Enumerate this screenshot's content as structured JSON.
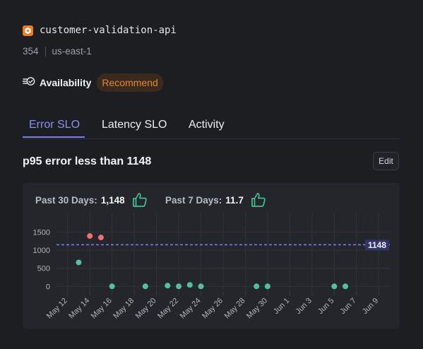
{
  "service": {
    "name": "customer-validation-api",
    "id": "354",
    "region": "us-east-1",
    "icon": "service-hexagon-icon",
    "icon_color": "#f07b1c"
  },
  "availability": {
    "label": "Availability",
    "badge": "Recommend",
    "icon": "availability-check-icon"
  },
  "tabs": [
    {
      "label": "Error SLO",
      "active": true
    },
    {
      "label": "Latency SLO",
      "active": false
    },
    {
      "label": "Activity",
      "active": false
    }
  ],
  "slo": {
    "title": "p95 error less than 1148",
    "edit_label": "Edit"
  },
  "stats": [
    {
      "label": "Past 30 Days:",
      "value": "1,148",
      "icon": "thumbs-up-icon"
    },
    {
      "label": "Past 7 Days:",
      "value": "11.7",
      "icon": "thumbs-up-icon"
    }
  ],
  "chart_data": {
    "type": "scatter",
    "x_tick_labels": [
      "May 12",
      "May 14",
      "May 16",
      "May 18",
      "May 20",
      "May 22",
      "May 24",
      "May 26",
      "May 28",
      "May 30",
      "Jun 1",
      "Jun 3",
      "Jun 5",
      "Jun 7",
      "Jun 9"
    ],
    "y_ticks": [
      0,
      500,
      1000,
      1500
    ],
    "ylim": [
      -150,
      1800
    ],
    "xlim": [
      "May 11",
      "Jun 10"
    ],
    "threshold": {
      "value": 1148,
      "label": "1148",
      "color": "#7b78f0"
    },
    "ok_color": "#4fc1a0",
    "breach_color": "#f0716a",
    "points": [
      {
        "x": "May 13",
        "y": 660
      },
      {
        "x": "May 14",
        "y": 1390
      },
      {
        "x": "May 15",
        "y": 1350
      },
      {
        "x": "May 16",
        "y": 0
      },
      {
        "x": "May 19",
        "y": 0
      },
      {
        "x": "May 21",
        "y": 20
      },
      {
        "x": "May 22",
        "y": 0
      },
      {
        "x": "May 23",
        "y": 40
      },
      {
        "x": "May 24",
        "y": 0
      },
      {
        "x": "May 29",
        "y": 0
      },
      {
        "x": "May 30",
        "y": 0
      },
      {
        "x": "Jun 5",
        "y": 0
      },
      {
        "x": "Jun 6",
        "y": 0
      }
    ]
  }
}
